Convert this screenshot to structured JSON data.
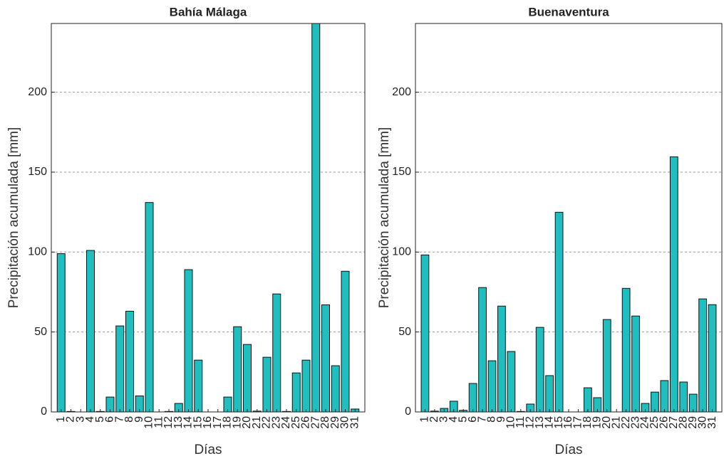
{
  "chart_data": [
    {
      "type": "bar",
      "title": "Bahía Málaga",
      "xlabel": "Días",
      "ylabel": "Precipitación acumulada [mm]",
      "categories": [
        "1",
        "2",
        "3",
        "4",
        "5",
        "6",
        "7",
        "8",
        "9",
        "10",
        "11",
        "12",
        "13",
        "14",
        "15",
        "16",
        "17",
        "18",
        "19",
        "20",
        "21",
        "22",
        "23",
        "24",
        "25",
        "26",
        "27",
        "28",
        "29",
        "30",
        "31"
      ],
      "values": [
        99,
        0.3,
        0,
        101,
        0.3,
        9.3,
        53.8,
        63,
        10,
        131,
        0,
        0.3,
        5.3,
        89,
        32.4,
        0,
        0,
        9.3,
        53.3,
        42.2,
        0.5,
        34.2,
        73.8,
        0.3,
        24.4,
        32.4,
        243,
        67,
        28.9,
        88,
        1.8
      ],
      "color": "#1fbfbf",
      "ylim": [
        0,
        243
      ],
      "yticks": [
        0,
        50,
        100,
        150,
        200
      ],
      "grid": true
    },
    {
      "type": "bar",
      "title": "Buenaventura",
      "xlabel": "Días",
      "ylabel": "Precipitación acumulada [mm]",
      "categories": [
        "1",
        "2",
        "3",
        "4",
        "5",
        "6",
        "7",
        "8",
        "9",
        "10",
        "11",
        "12",
        "13",
        "14",
        "15",
        "16",
        "17",
        "18",
        "19",
        "20",
        "21",
        "22",
        "23",
        "24",
        "25",
        "26",
        "27",
        "28",
        "29",
        "30",
        "31"
      ],
      "values": [
        98.2,
        0.5,
        2.2,
        6.7,
        1,
        17.8,
        77.8,
        32,
        66.2,
        37.8,
        0.3,
        4.9,
        52.9,
        22.7,
        124.9,
        0,
        0,
        15.1,
        8.9,
        57.8,
        0,
        77.3,
        60,
        5.3,
        12.4,
        19.6,
        159.6,
        18.7,
        11.1,
        70.7,
        67.1
      ],
      "color": "#1fbfbf",
      "ylim": [
        0,
        243
      ],
      "yticks": [
        0,
        50,
        100,
        150,
        200
      ],
      "grid": true
    }
  ]
}
